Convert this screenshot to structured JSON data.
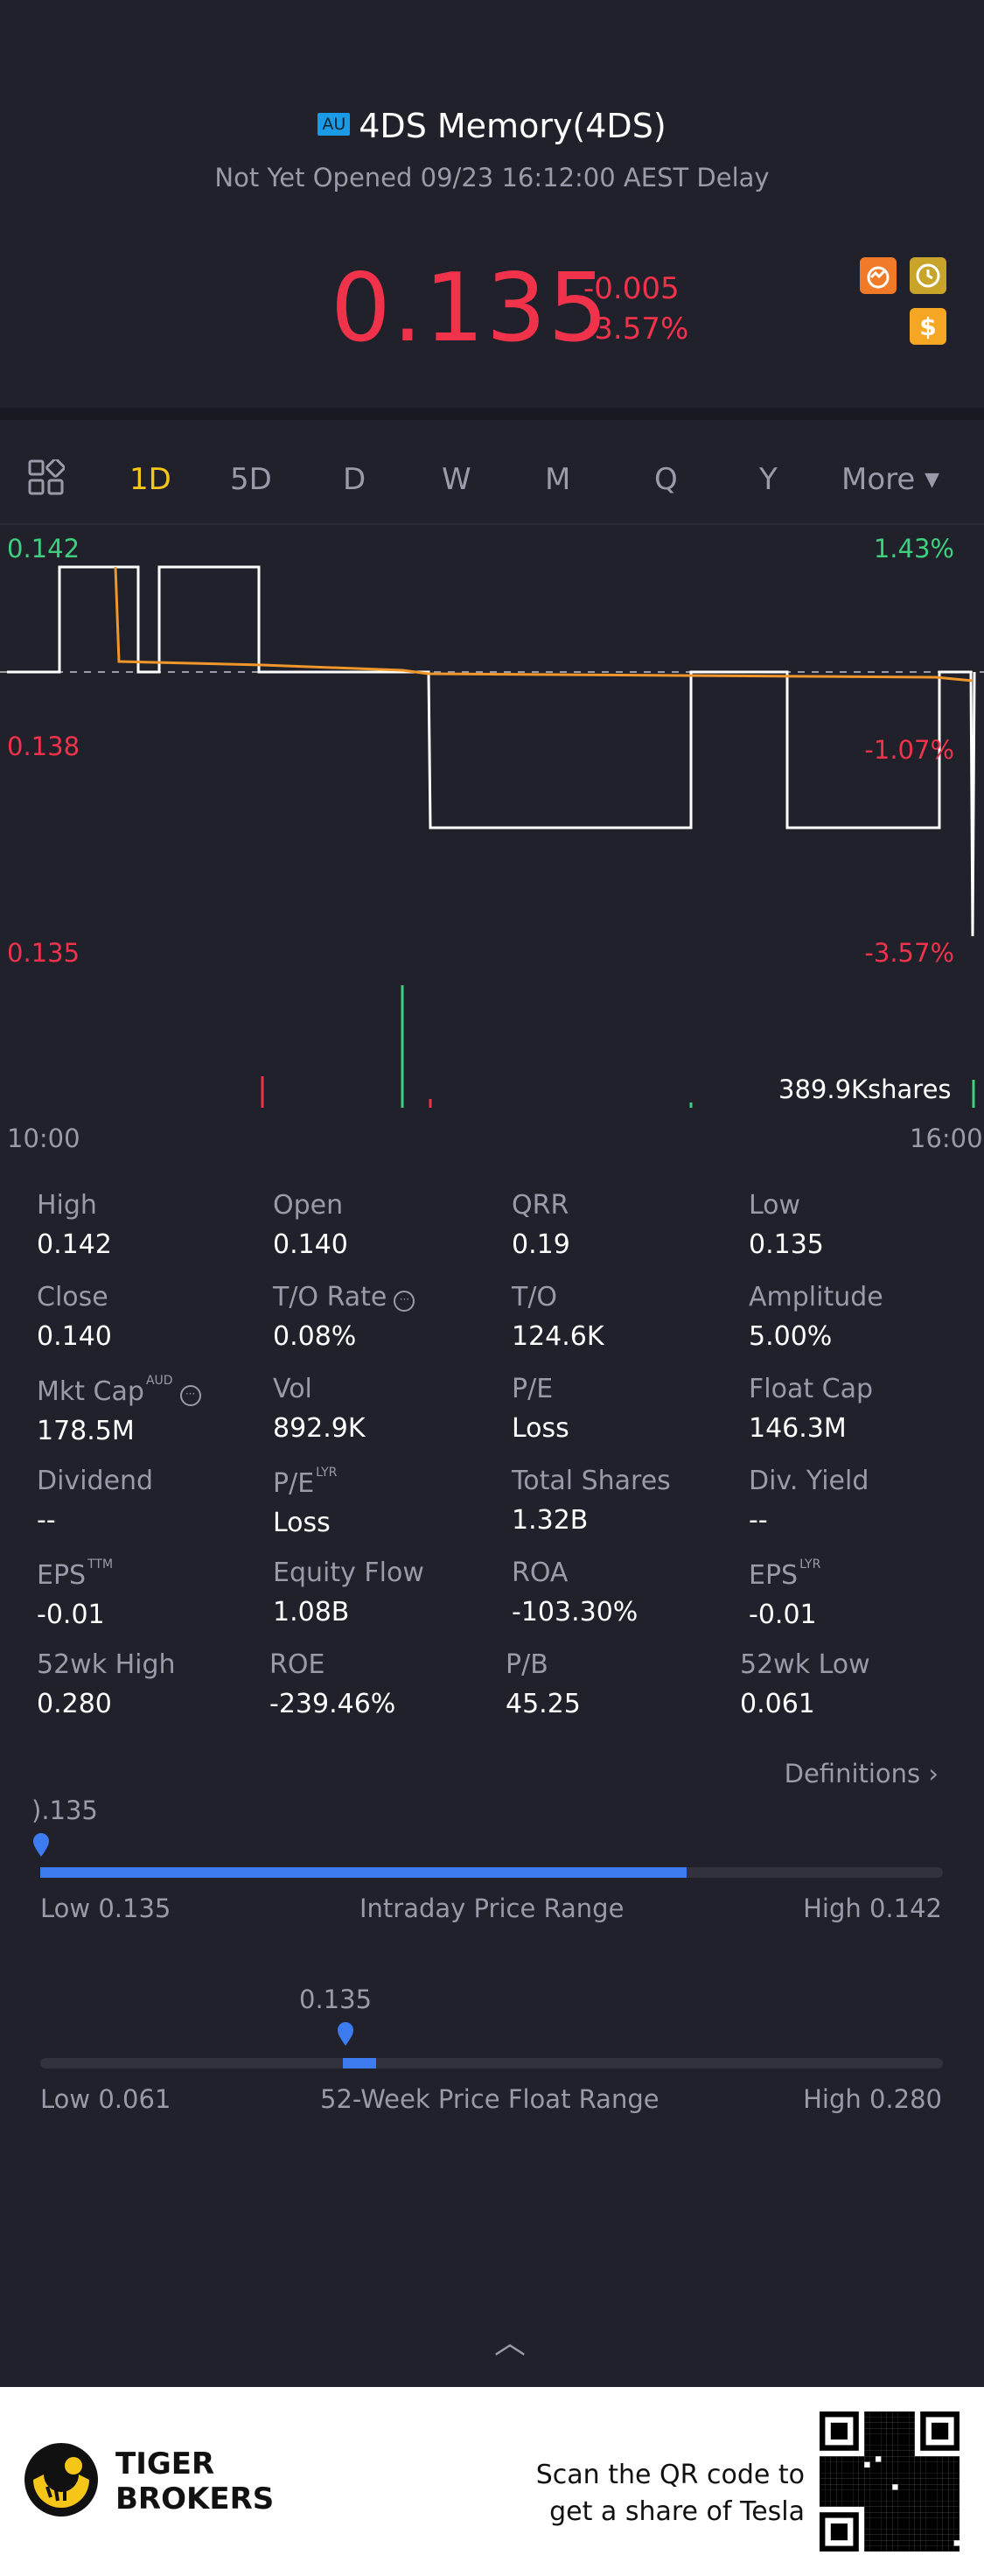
{
  "header": {
    "market_badge": "AU",
    "title": "4DS Memory(4DS)",
    "status": "Not Yet Opened 09/23 16:12:00 AEST Delay",
    "price": "0.135",
    "change": "-0.005",
    "change_pct": "-3.57%",
    "icons": [
      "trend-icon",
      "clock-icon",
      "dollar-icon"
    ]
  },
  "tabs": {
    "items": [
      "1D",
      "5D",
      "D",
      "W",
      "M",
      "Q",
      "Y",
      "More"
    ],
    "active": "1D"
  },
  "chart": {
    "y_left": [
      "0.142",
      "0.138",
      "0.135"
    ],
    "y_right": [
      "1.43%",
      "-1.07%",
      "-3.57%"
    ],
    "volume_label": "389.9Kshares",
    "time_start": "10:00",
    "time_end": "16:00"
  },
  "chart_data": {
    "type": "line",
    "x": [
      "10:00",
      "16:00"
    ],
    "series": [],
    "ylim": [
      0.135,
      0.142
    ]
  },
  "stats": [
    {
      "label": "High",
      "value": "0.142",
      "sup": "",
      "info": false
    },
    {
      "label": "Open",
      "value": "0.140",
      "sup": "",
      "info": false
    },
    {
      "label": "QRR",
      "value": "0.19",
      "sup": "",
      "info": false
    },
    {
      "label": "Low",
      "value": "0.135",
      "sup": "",
      "info": false
    },
    {
      "label": "Close",
      "value": "0.140",
      "sup": "",
      "info": false
    },
    {
      "label": "T/O Rate",
      "value": "0.08%",
      "sup": "",
      "info": true
    },
    {
      "label": "T/O",
      "value": "124.6K",
      "sup": "",
      "info": false
    },
    {
      "label": "Amplitude",
      "value": "5.00%",
      "sup": "",
      "info": false
    },
    {
      "label": "Mkt Cap",
      "value": "178.5M",
      "sup": "AUD",
      "info": true
    },
    {
      "label": "Vol",
      "value": "892.9K",
      "sup": "",
      "info": false
    },
    {
      "label": "P/E",
      "value": "Loss",
      "sup": "",
      "info": false
    },
    {
      "label": "Float Cap",
      "value": "146.3M",
      "sup": "",
      "info": false
    },
    {
      "label": "Dividend",
      "value": "--",
      "sup": "",
      "info": false
    },
    {
      "label": "P/E",
      "value": "Loss",
      "sup": "LYR",
      "info": false
    },
    {
      "label": "Total Shares",
      "value": "1.32B",
      "sup": "",
      "info": false
    },
    {
      "label": "Div. Yield",
      "value": "--",
      "sup": "",
      "info": false
    },
    {
      "label": "EPS",
      "value": "-0.01",
      "sup": "TTM",
      "info": false
    },
    {
      "label": "Equity Flow",
      "value": "1.08B",
      "sup": "",
      "info": false
    },
    {
      "label": "ROA",
      "value": "-103.30%",
      "sup": "",
      "info": false
    },
    {
      "label": "EPS",
      "value": "-0.01",
      "sup": "LYR",
      "info": false
    },
    {
      "label": "52wk High",
      "value": "0.280",
      "sup": "",
      "info": false
    },
    {
      "label": "ROE",
      "value": "-239.46%",
      "sup": "",
      "info": false
    },
    {
      "label": "P/B",
      "value": "45.25",
      "sup": "",
      "info": false
    },
    {
      "label": "52wk Low",
      "value": "0.061",
      "sup": "",
      "info": false
    }
  ],
  "definitions_label": "Definitions",
  "intraday_range": {
    "marker_value": ").135",
    "low_label": "Low 0.135",
    "title": "Intraday Price Range",
    "high_label": "High 0.142",
    "fill_fraction": 0.716,
    "marker_fraction": 0.0
  },
  "week52_range": {
    "marker_value": "0.135",
    "low_label": "Low 0.061",
    "title": "52-Week Price Float Range",
    "high_label": "High 0.280",
    "marker_fraction": 0.338
  },
  "footer": {
    "brand_line1": "TIGER",
    "brand_line2": "BROKERS",
    "promo_line1": "Scan the QR code to",
    "promo_line2": "get a share of Tesla"
  }
}
